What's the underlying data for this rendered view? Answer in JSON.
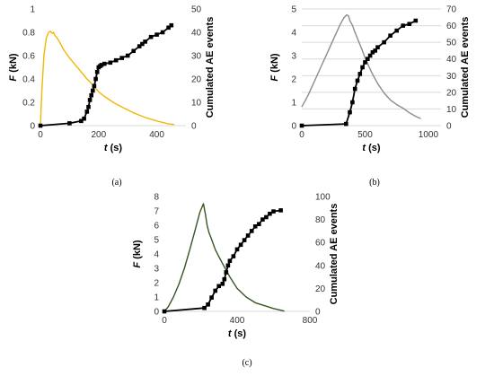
{
  "chart_data": [
    {
      "panel_label": "(a)",
      "type": "line",
      "xlabel": "t (s)",
      "ylabel_left": "F (kN)",
      "ylabel_right": "Cumulated AE events",
      "xlim": [
        0,
        500
      ],
      "x_ticks": [
        "0",
        "200",
        "400"
      ],
      "ylim_left": [
        0,
        1
      ],
      "y_ticks_left": [
        "0",
        "0.2",
        "0.4",
        "0.6",
        "0.8",
        "1"
      ],
      "ylim_right": [
        0,
        50
      ],
      "y_ticks_right": [
        "0",
        "10",
        "20",
        "30",
        "40",
        "50"
      ],
      "grid": false,
      "series": [
        {
          "axis": "left",
          "color": "#f2b705",
          "marker": "none",
          "x": [
            0,
            5,
            12,
            20,
            28,
            35,
            40,
            45,
            50,
            55,
            65,
            80,
            100,
            120,
            140,
            160,
            180,
            200,
            220,
            250,
            280,
            320,
            360,
            400,
            440,
            460
          ],
          "y": [
            0,
            0.3,
            0.6,
            0.75,
            0.8,
            0.81,
            0.79,
            0.8,
            0.77,
            0.76,
            0.72,
            0.65,
            0.58,
            0.52,
            0.46,
            0.4,
            0.35,
            0.29,
            0.25,
            0.2,
            0.16,
            0.11,
            0.07,
            0.04,
            0.015,
            0.01
          ]
        },
        {
          "axis": "right",
          "color": "#000000",
          "marker": "square",
          "x": [
            0,
            100,
            140,
            150,
            160,
            165,
            170,
            175,
            180,
            185,
            190,
            195,
            200,
            205,
            210,
            220,
            240,
            260,
            280,
            300,
            320,
            340,
            350,
            360,
            380,
            400,
            420,
            440,
            450
          ],
          "y": [
            0,
            1,
            2,
            3,
            6,
            8,
            11,
            13,
            15,
            17,
            20,
            23,
            25,
            25.5,
            26,
            26.5,
            27,
            28,
            29,
            30,
            32,
            34,
            35,
            36,
            38,
            39,
            40,
            42,
            43
          ]
        }
      ]
    },
    {
      "panel_label": "(b)",
      "type": "line",
      "xlabel": "t (s)",
      "ylabel_left": "F (kN)",
      "ylabel_right": "Cumulated AE events",
      "xlim": [
        0,
        1100
      ],
      "x_ticks": [
        "0",
        "500",
        "1000"
      ],
      "ylim_left": [
        0,
        5
      ],
      "y_ticks_left": [
        "0",
        "1",
        "2",
        "3",
        "4",
        "5"
      ],
      "ylim_right": [
        0,
        70
      ],
      "y_ticks_right": [
        "0",
        "10",
        "20",
        "30",
        "40",
        "50",
        "60",
        "70"
      ],
      "grid": true,
      "series": [
        {
          "axis": "left",
          "color": "#8c8c8c",
          "marker": "none",
          "x": [
            0,
            50,
            100,
            150,
            200,
            250,
            300,
            330,
            355,
            370,
            380,
            400,
            420,
            450,
            480,
            500,
            550,
            600,
            650,
            700,
            750,
            800,
            850,
            900,
            940
          ],
          "y": [
            0.8,
            1.3,
            1.9,
            2.5,
            3.1,
            3.7,
            4.3,
            4.6,
            4.75,
            4.7,
            4.5,
            4.3,
            4.0,
            3.6,
            3.2,
            2.9,
            2.3,
            1.8,
            1.4,
            1.1,
            0.9,
            0.75,
            0.55,
            0.4,
            0.3
          ]
        },
        {
          "axis": "right",
          "color": "#000000",
          "marker": "square",
          "x": [
            0,
            350,
            380,
            400,
            420,
            440,
            460,
            480,
            500,
            520,
            540,
            560,
            580,
            600,
            650,
            700,
            750,
            800,
            850,
            900
          ],
          "y": [
            0,
            1,
            8,
            14,
            22,
            27,
            31,
            35,
            38,
            40,
            42,
            44,
            45,
            47,
            50,
            54,
            57,
            60,
            61,
            63
          ]
        }
      ]
    },
    {
      "panel_label": "(c)",
      "type": "line",
      "xlabel": "t (s)",
      "ylabel_left": "F (kN)",
      "ylabel_right": "Cumulated AE events",
      "xlim": [
        0,
        800
      ],
      "x_ticks": [
        "0",
        "400",
        "800"
      ],
      "ylim_left": [
        0,
        8
      ],
      "y_ticks_left": [
        "0",
        "1",
        "2",
        "3",
        "4",
        "5",
        "6",
        "7",
        "8"
      ],
      "ylim_right": [
        0,
        100
      ],
      "y_ticks_right": [
        "0",
        "20",
        "40",
        "60",
        "80",
        "100"
      ],
      "grid": false,
      "series": [
        {
          "axis": "left",
          "color": "#375623",
          "marker": "none",
          "x": [
            0,
            20,
            50,
            80,
            110,
            140,
            170,
            195,
            215,
            225,
            235,
            245,
            260,
            280,
            300,
            330,
            360,
            400,
            450,
            500,
            550,
            600,
            640,
            660
          ],
          "y": [
            0,
            0.3,
            1.0,
            1.9,
            3.0,
            4.3,
            5.7,
            6.9,
            7.5,
            6.8,
            6.0,
            5.5,
            5.0,
            4.3,
            3.8,
            3.1,
            2.4,
            1.6,
            1.0,
            0.6,
            0.4,
            0.2,
            0.08,
            0.02
          ]
        },
        {
          "axis": "right",
          "color": "#000000",
          "marker": "square",
          "x": [
            0,
            220,
            240,
            260,
            280,
            300,
            320,
            330,
            340,
            350,
            360,
            380,
            400,
            420,
            440,
            460,
            480,
            500,
            520,
            540,
            560,
            580,
            600,
            640
          ],
          "y": [
            0,
            3,
            6,
            12,
            18,
            22,
            24,
            28,
            34,
            40,
            44,
            48,
            54,
            58,
            62,
            66,
            70,
            74,
            76,
            80,
            82,
            85,
            87,
            88
          ]
        }
      ]
    }
  ]
}
